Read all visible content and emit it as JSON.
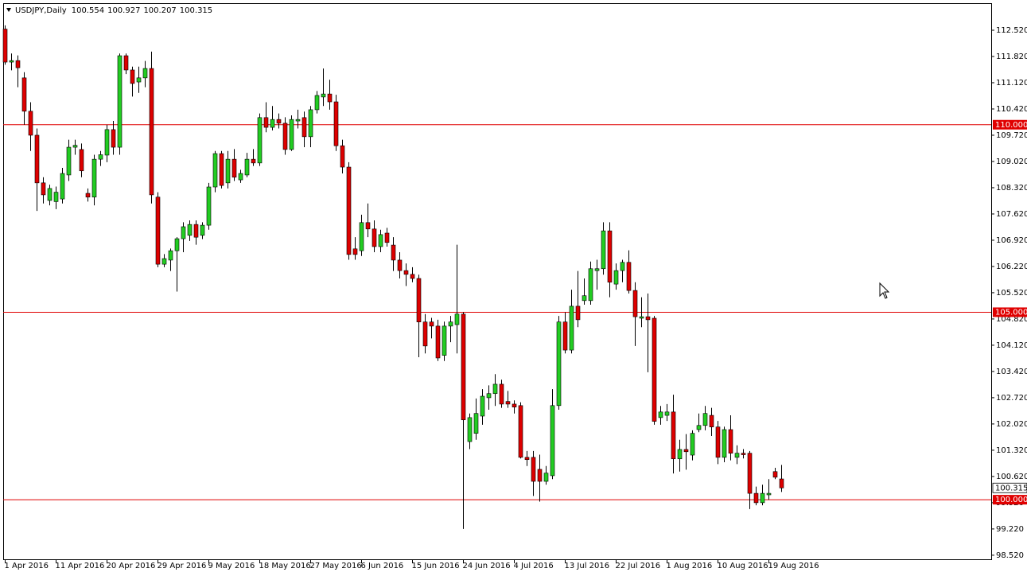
{
  "chart_data": {
    "type": "candlestick",
    "title": "USDJPY,Daily",
    "up_color": "#22cc22",
    "down_color": "#dd0000",
    "categories": [
      "1 Apr 2016",
      null,
      null,
      null,
      null,
      null,
      null,
      null,
      "11 Apr 2016",
      null,
      null,
      null,
      null,
      null,
      null,
      null,
      "20 Apr 2016",
      null,
      null,
      null,
      null,
      null,
      null,
      null,
      "29 Apr 2016",
      null,
      null,
      null,
      null,
      null,
      null,
      null,
      "9 May 2016",
      null,
      null,
      null,
      null,
      null,
      null,
      null,
      "18 May 2016",
      null,
      null,
      null,
      null,
      null,
      null,
      null,
      "27 May 2016",
      null,
      null,
      null,
      null,
      null,
      null,
      null,
      "6 Jun 2016",
      null,
      null,
      null,
      null,
      null,
      null,
      null,
      "15 Jun 2016",
      null,
      null,
      null,
      null,
      null,
      null,
      null,
      "24 Jun 2016",
      null,
      null,
      null,
      null,
      null,
      null,
      null,
      "4 Jul 2016",
      null,
      null,
      null,
      null,
      null,
      null,
      null,
      "13 Jul 2016",
      null,
      null,
      null,
      null,
      null,
      null,
      null,
      "22 Jul 2016",
      null,
      null,
      null,
      null,
      null,
      null,
      null,
      "1 Aug 2016",
      null,
      null,
      null,
      null,
      null,
      null,
      null,
      "10 Aug 2016",
      null,
      null,
      null,
      null,
      null,
      null,
      null,
      "19 Aug 2016",
      null,
      null
    ],
    "open": [
      112.55,
      111.67,
      111.71,
      111.25,
      110.36,
      109.72,
      108.45,
      107.98,
      107.95,
      108.02,
      108.66,
      109.4,
      109.34,
      108.17,
      108.07,
      109.08,
      109.19,
      109.87,
      109.4,
      111.84,
      111.46,
      111.14,
      111.25,
      111.5,
      108.07,
      106.28,
      106.39,
      106.64,
      106.96,
      107.05,
      107.34,
      107.05,
      107.32,
      108.34,
      109.23,
      108.45,
      109.08,
      108.53,
      108.66,
      109.08,
      108.98,
      110.19,
      109.93,
      110.14,
      110.04,
      109.34,
      110.1,
      110.19,
      109.68,
      110.4,
      110.74,
      110.82,
      110.61,
      109.44,
      108.87,
      106.69,
      106.64,
      107.39,
      107.22,
      106.75,
      107.11,
      106.79,
      106.39,
      106.11,
      106.01,
      105.9,
      104.74,
      104.74,
      104.63,
      103.85,
      104.63,
      104.67,
      104.95,
      101.55,
      101.77,
      102.23,
      102.72,
      102.83,
      103.08,
      102.62,
      102.55,
      102.51,
      101.13,
      101.13,
      100.81,
      100.49,
      100.64,
      102.51,
      104.74,
      103.99,
      105.16,
      105.31,
      105.31,
      106.11,
      106.16,
      107.17,
      105.75,
      106.11,
      106.33,
      105.58,
      104.84,
      104.88,
      104.84,
      102.19,
      102.25,
      102.34,
      101.09,
      101.34,
      101.19,
      101.87,
      101.98,
      102.25,
      101.94,
      101.13,
      101.87,
      101.13,
      101.24,
      101.24,
      100.17,
      99.92,
      100.13,
      100.75,
      100.554
    ],
    "high": [
      112.65,
      111.9,
      111.85,
      111.4,
      110.6,
      109.9,
      108.6,
      108.4,
      108.35,
      108.85,
      109.6,
      109.6,
      109.5,
      108.3,
      109.2,
      109.3,
      110.0,
      110.1,
      111.9,
      111.9,
      111.55,
      111.55,
      111.7,
      111.95,
      108.2,
      106.55,
      106.7,
      107.0,
      107.4,
      107.45,
      107.45,
      107.4,
      108.45,
      109.3,
      109.3,
      109.3,
      109.35,
      108.8,
      109.25,
      109.35,
      110.3,
      110.6,
      110.5,
      110.3,
      110.2,
      110.25,
      110.4,
      110.35,
      110.5,
      110.9,
      111.5,
      111.2,
      110.8,
      109.6,
      109.0,
      107.0,
      107.6,
      107.9,
      107.45,
      107.2,
      107.25,
      107.0,
      106.6,
      106.3,
      106.2,
      106.0,
      104.95,
      104.85,
      104.8,
      104.75,
      104.9,
      106.8,
      105.0,
      102.3,
      102.7,
      102.95,
      103.05,
      103.35,
      103.2,
      102.9,
      102.65,
      102.6,
      101.3,
      101.3,
      101.2,
      100.9,
      102.95,
      104.9,
      105.0,
      105.6,
      106.1,
      105.9,
      106.35,
      106.4,
      107.4,
      107.4,
      106.3,
      106.4,
      106.65,
      105.8,
      105.4,
      105.5,
      104.9,
      102.5,
      102.55,
      102.8,
      101.6,
      101.75,
      101.85,
      102.3,
      102.5,
      102.45,
      102.1,
      101.95,
      102.25,
      101.45,
      101.35,
      101.3,
      100.35,
      100.4,
      100.55,
      100.85,
      100.927
    ],
    "low": [
      111.6,
      111.45,
      111.0,
      110.0,
      109.3,
      107.7,
      107.9,
      107.85,
      107.75,
      107.9,
      108.5,
      109.2,
      108.6,
      107.95,
      107.85,
      108.9,
      109.0,
      109.2,
      109.2,
      111.35,
      110.75,
      110.85,
      111.0,
      107.9,
      106.2,
      106.2,
      106.1,
      105.55,
      106.6,
      106.9,
      106.8,
      106.95,
      107.2,
      108.2,
      108.3,
      108.3,
      108.5,
      108.45,
      108.6,
      108.9,
      108.9,
      109.8,
      109.85,
      109.9,
      109.2,
      109.3,
      109.9,
      109.4,
      109.4,
      110.3,
      110.5,
      110.4,
      109.3,
      108.7,
      106.4,
      106.4,
      106.5,
      107.0,
      106.6,
      106.6,
      106.75,
      106.1,
      105.9,
      105.7,
      105.8,
      103.8,
      103.9,
      104.3,
      103.7,
      103.7,
      104.2,
      103.9,
      99.22,
      101.35,
      101.6,
      102.0,
      102.4,
      102.5,
      102.45,
      102.45,
      102.3,
      101.1,
      100.9,
      100.1,
      99.95,
      100.4,
      100.55,
      102.4,
      103.9,
      103.9,
      104.6,
      105.2,
      105.2,
      105.6,
      106.0,
      105.4,
      105.6,
      105.8,
      105.5,
      104.1,
      104.6,
      103.4,
      102.0,
      102.0,
      102.1,
      100.7,
      100.75,
      100.8,
      101.05,
      101.8,
      101.85,
      101.7,
      100.95,
      101.0,
      101.05,
      100.95,
      101.1,
      99.75,
      99.85,
      99.85,
      100.0,
      100.55,
      100.207
    ],
    "close": [
      111.67,
      111.71,
      111.52,
      110.36,
      109.72,
      108.45,
      108.13,
      108.3,
      108.2,
      108.7,
      109.4,
      109.45,
      108.77,
      108.07,
      109.08,
      109.2,
      109.87,
      109.4,
      111.84,
      111.46,
      111.1,
      111.25,
      111.5,
      108.13,
      106.28,
      106.43,
      106.64,
      106.96,
      107.28,
      107.34,
      107.0,
      107.32,
      108.34,
      109.23,
      108.38,
      109.08,
      108.6,
      108.7,
      109.08,
      108.98,
      110.19,
      109.93,
      110.14,
      110.04,
      109.34,
      110.14,
      110.14,
      109.68,
      110.4,
      110.78,
      110.82,
      110.61,
      109.44,
      108.87,
      106.54,
      106.54,
      107.39,
      107.22,
      106.75,
      107.07,
      106.86,
      106.39,
      106.11,
      106.01,
      105.9,
      104.74,
      104.1,
      104.63,
      103.78,
      104.63,
      104.74,
      104.95,
      102.13,
      102.19,
      102.3,
      102.76,
      102.83,
      103.08,
      102.55,
      102.55,
      102.47,
      101.13,
      101.07,
      100.49,
      100.49,
      100.71,
      102.51,
      104.74,
      103.99,
      105.16,
      104.8,
      105.44,
      106.16,
      106.16,
      107.17,
      105.8,
      106.11,
      106.33,
      105.58,
      104.88,
      104.88,
      104.8,
      102.09,
      102.34,
      102.34,
      101.09,
      101.34,
      101.28,
      101.77,
      101.98,
      102.3,
      101.94,
      101.13,
      101.87,
      101.24,
      101.24,
      101.2,
      100.17,
      99.92,
      100.17,
      100.17,
      100.6,
      100.315
    ],
    "hlines": [
      {
        "value": 110,
        "label": "110.000"
      },
      {
        "value": 105,
        "label": "105.000"
      },
      {
        "value": 100,
        "label": "100.000"
      }
    ],
    "hline_color": "#e00000",
    "last_price": 100.315,
    "ylim": [
      98.39,
      113.22
    ],
    "yticks": [
      {
        "value": 98.52,
        "label": "98.520"
      },
      {
        "value": 99.22,
        "label": "99.220"
      },
      {
        "value": 99.92,
        "label": "99.920"
      },
      {
        "value": 100.62,
        "label": "100.620"
      },
      {
        "value": 101.32,
        "label": "101.320"
      },
      {
        "value": 102.02,
        "label": "102.020"
      },
      {
        "value": 102.72,
        "label": "102.720"
      },
      {
        "value": 103.42,
        "label": "103.420"
      },
      {
        "value": 104.12,
        "label": "104.120"
      },
      {
        "value": 104.82,
        "label": "104.820"
      },
      {
        "value": 105.52,
        "label": "105.520"
      },
      {
        "value": 106.22,
        "label": "106.220"
      },
      {
        "value": 106.92,
        "label": "106.920"
      },
      {
        "value": 107.62,
        "label": "107.620"
      },
      {
        "value": 108.32,
        "label": "108.320"
      },
      {
        "value": 109.02,
        "label": "109.020"
      },
      {
        "value": 109.72,
        "label": "109.720"
      },
      {
        "value": 110.42,
        "label": "110.420"
      },
      {
        "value": 111.12,
        "label": "111.120"
      },
      {
        "value": 111.82,
        "label": "111.820"
      },
      {
        "value": 112.52,
        "label": "112.520"
      }
    ]
  }
}
